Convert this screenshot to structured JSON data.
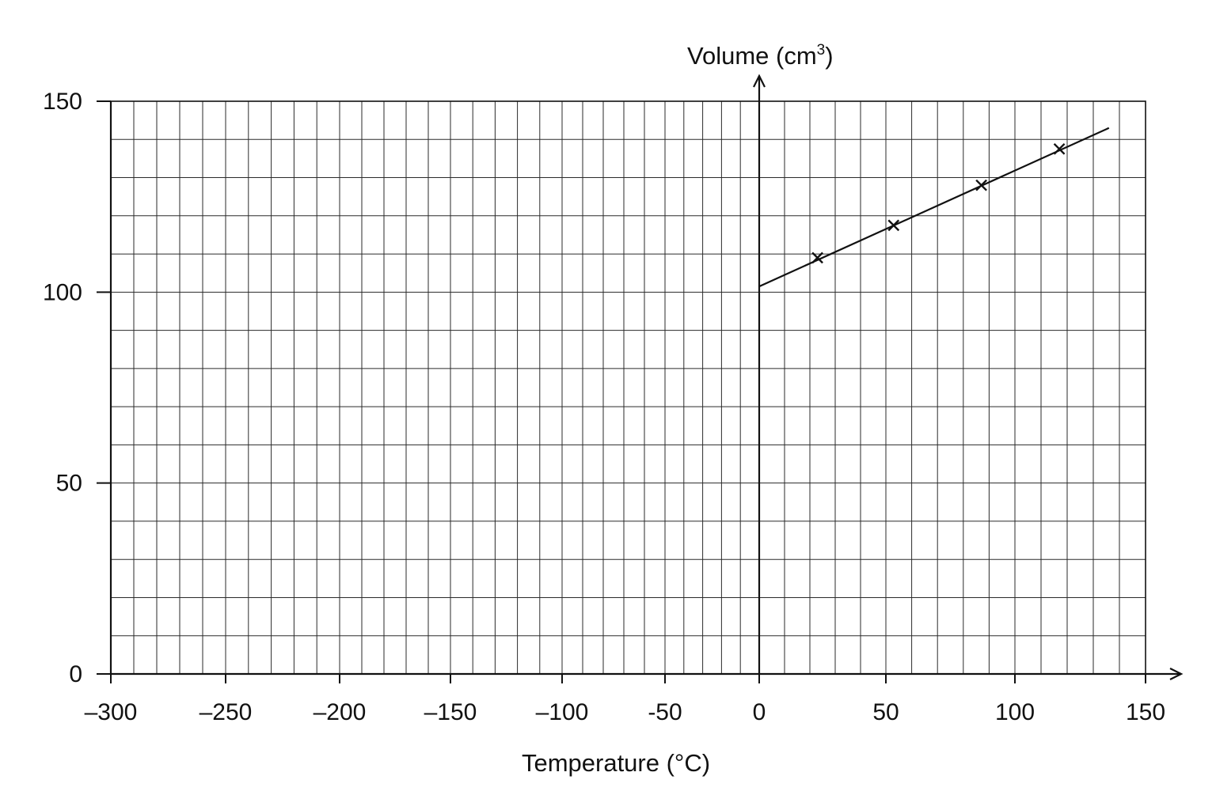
{
  "chart_data": {
    "type": "scatter",
    "title": "",
    "xlabel": "Temperature (°C)",
    "ylabel_main": "Volume (cm",
    "ylabel_sup": "3",
    "ylabel_close": ")",
    "xlim": [
      -300,
      150
    ],
    "ylim": [
      0,
      150
    ],
    "x_ticks": [
      -300,
      -250,
      -200,
      -150,
      -100,
      -50,
      0,
      50,
      100,
      150
    ],
    "x_tick_labels": [
      "–300",
      "–250",
      "–200",
      "–150",
      "–100",
      "-50",
      "0",
      "50",
      "100",
      "150"
    ],
    "y_ticks": [
      0,
      50,
      100,
      150
    ],
    "y_tick_labels": [
      "0",
      "50",
      "100",
      "150"
    ],
    "grid": true,
    "points": {
      "marker": "x",
      "x": [
        23,
        53,
        87,
        117
      ],
      "y": [
        109,
        117.5,
        128,
        137.5
      ]
    },
    "fit_line": {
      "x": [
        0,
        136
      ],
      "y": [
        101.5,
        143
      ]
    }
  }
}
